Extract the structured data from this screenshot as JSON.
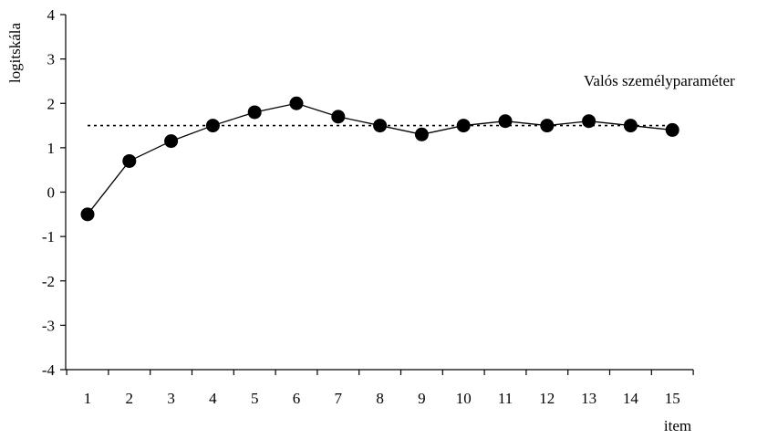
{
  "chart_data": {
    "type": "line",
    "ylabel": "logitskála",
    "xlabel": "item",
    "annotation": "Valós személyparaméter",
    "ylim": [
      -4,
      4
    ],
    "yticks": [
      -4,
      -3,
      -2,
      -1,
      0,
      1,
      2,
      3,
      4
    ],
    "ytick_labels": [
      "-4",
      "-3",
      "-2",
      "-1",
      "0",
      "1",
      "2",
      "3",
      "4"
    ],
    "x": [
      1,
      2,
      3,
      4,
      5,
      6,
      7,
      8,
      9,
      10,
      11,
      12,
      13,
      14,
      15
    ],
    "xtick_labels": [
      "1",
      "2",
      "3",
      "4",
      "5",
      "6",
      "7",
      "8",
      "9",
      "10",
      "11",
      "12",
      "13",
      "14",
      "15"
    ],
    "series": [
      {
        "values": [
          -0.5,
          0.7,
          1.15,
          1.5,
          1.8,
          2.0,
          1.7,
          1.5,
          1.3,
          1.5,
          1.6,
          1.5,
          1.6,
          1.5,
          1.4
        ],
        "marker": "circle",
        "line_style": "solid",
        "color": "#000000"
      }
    ],
    "reference_line": {
      "y": 1.5,
      "line_style": "dotted",
      "color": "#000000"
    },
    "grid": false,
    "legend": "none"
  }
}
